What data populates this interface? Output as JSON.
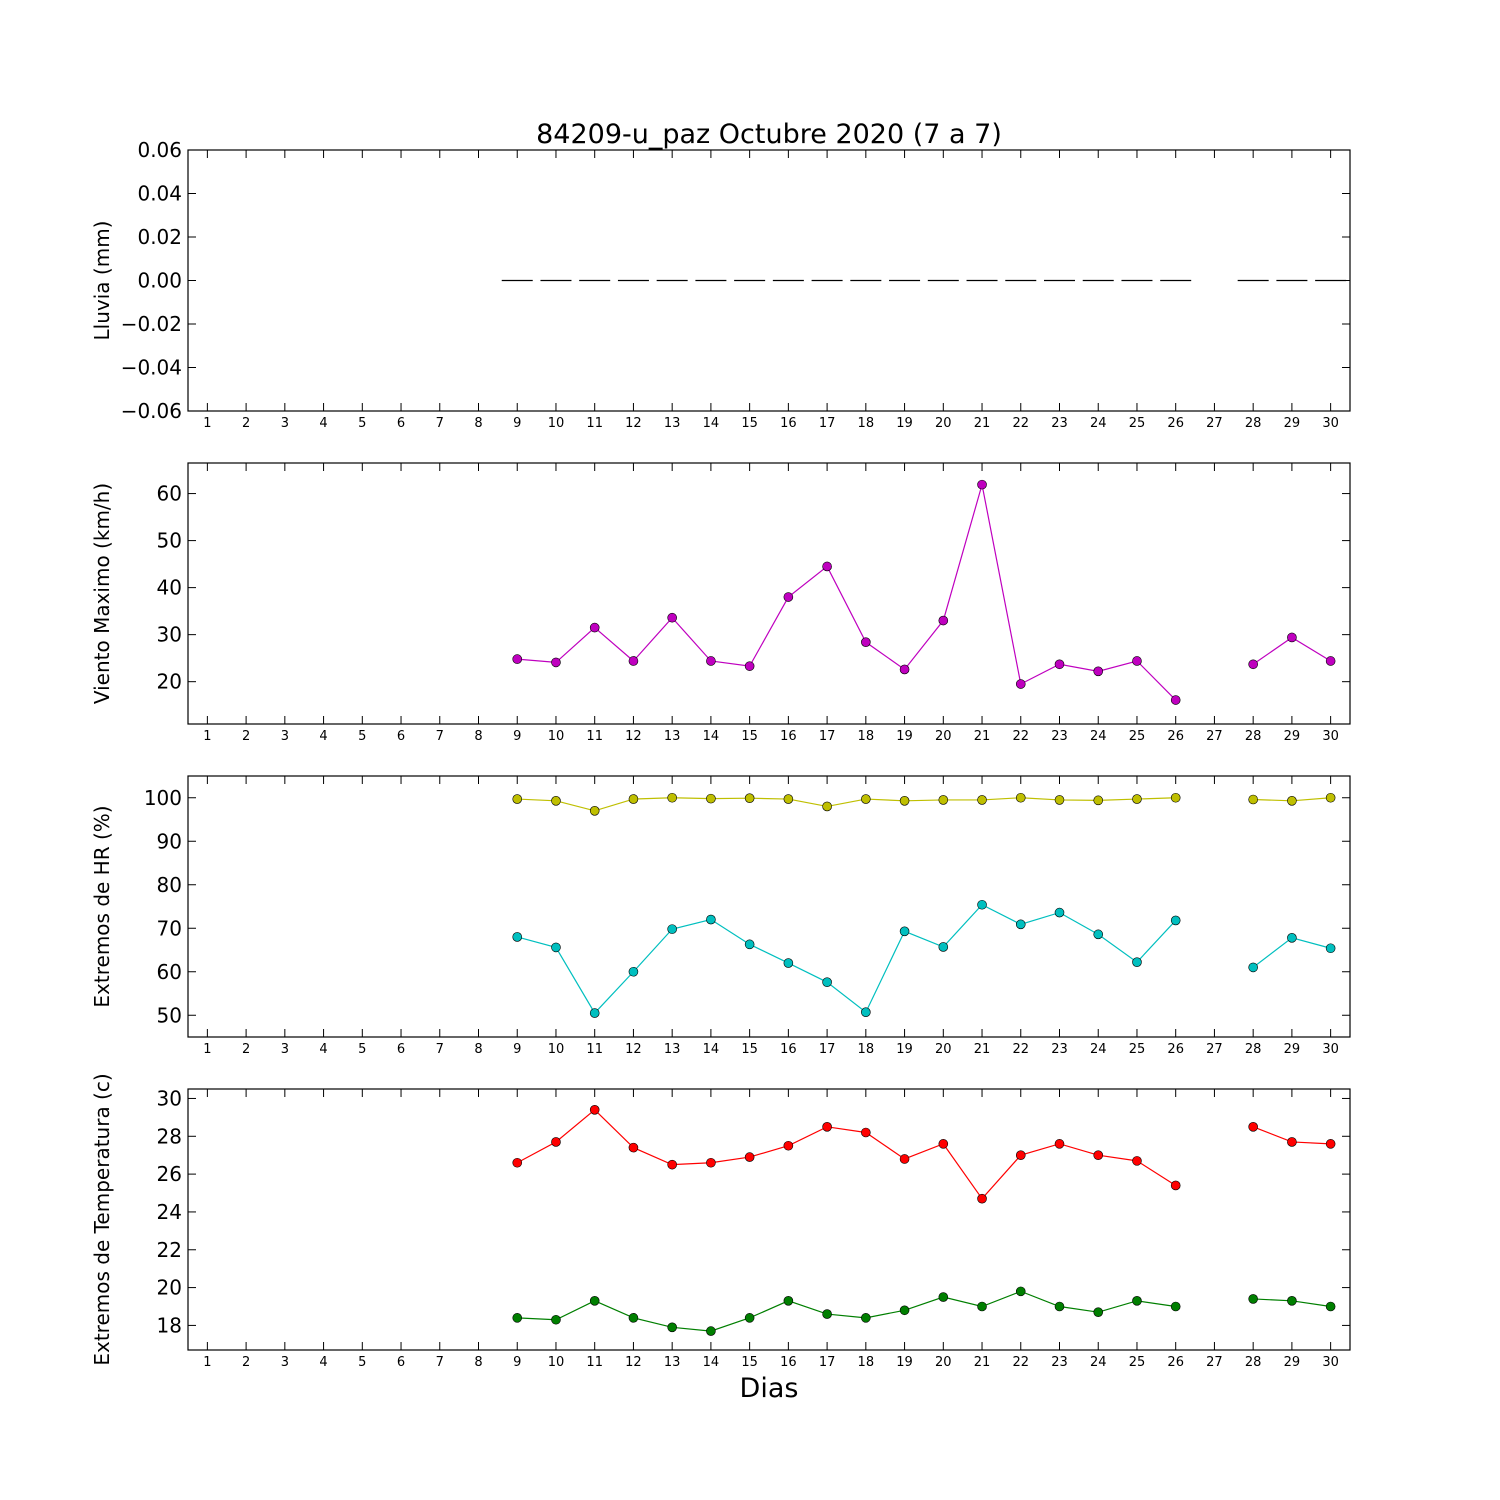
{
  "figure": {
    "title": "84209-u_paz Octubre 2020  (7 a 7)",
    "xlabel": "Dias"
  },
  "chart_data": [
    {
      "type": "line",
      "ylabel": "Lluvia (mm)",
      "x": [
        1,
        2,
        3,
        4,
        5,
        6,
        7,
        8,
        9,
        10,
        11,
        12,
        13,
        14,
        15,
        16,
        17,
        18,
        19,
        20,
        21,
        22,
        23,
        24,
        25,
        26,
        27,
        28,
        29,
        30
      ],
      "xlim": [
        0.5,
        30.5
      ],
      "ylim": [
        -0.06,
        0.06
      ],
      "yticks": [
        -0.06,
        -0.04,
        -0.02,
        0.0,
        0.02,
        0.04,
        0.06
      ],
      "ytick_labels": [
        "−0.06",
        "−0.04",
        "−0.02",
        "0.00",
        "0.02",
        "0.04",
        "0.06"
      ],
      "series": [
        {
          "color": "#000000",
          "style": "bar-dash",
          "values": [
            null,
            null,
            null,
            null,
            null,
            null,
            null,
            null,
            0,
            0,
            0,
            0,
            0,
            0,
            0,
            0,
            0,
            0,
            0,
            0,
            0,
            0,
            0,
            0,
            0,
            0,
            null,
            0,
            0,
            0
          ]
        }
      ]
    },
    {
      "type": "line",
      "ylabel": "Viento Maximo (km/h)",
      "x": [
        1,
        2,
        3,
        4,
        5,
        6,
        7,
        8,
        9,
        10,
        11,
        12,
        13,
        14,
        15,
        16,
        17,
        18,
        19,
        20,
        21,
        22,
        23,
        24,
        25,
        26,
        27,
        28,
        29,
        30
      ],
      "xlim": [
        0.5,
        30.5
      ],
      "ylim": [
        11,
        66.5
      ],
      "yticks": [
        20,
        30,
        40,
        50,
        60
      ],
      "ytick_labels": [
        "20",
        "30",
        "40",
        "50",
        "60"
      ],
      "series": [
        {
          "color": "#bf00bf",
          "values": [
            null,
            null,
            null,
            null,
            null,
            null,
            null,
            null,
            24.8,
            24.1,
            31.5,
            24.4,
            33.6,
            24.4,
            23.3,
            38.0,
            44.5,
            28.4,
            22.6,
            33.0,
            61.9,
            19.5,
            23.7,
            22.2,
            24.4,
            16.1,
            null,
            23.7,
            29.4,
            24.4
          ]
        }
      ]
    },
    {
      "type": "line",
      "ylabel": "Extremos de HR (%)",
      "x": [
        1,
        2,
        3,
        4,
        5,
        6,
        7,
        8,
        9,
        10,
        11,
        12,
        13,
        14,
        15,
        16,
        17,
        18,
        19,
        20,
        21,
        22,
        23,
        24,
        25,
        26,
        27,
        28,
        29,
        30
      ],
      "xlim": [
        0.5,
        30.5
      ],
      "ylim": [
        45,
        105
      ],
      "yticks": [
        50,
        60,
        70,
        80,
        90,
        100
      ],
      "ytick_labels": [
        "50",
        "60",
        "70",
        "80",
        "90",
        "100"
      ],
      "series": [
        {
          "color": "#bfbf00",
          "values": [
            null,
            null,
            null,
            null,
            null,
            null,
            null,
            null,
            99.7,
            99.3,
            97.0,
            99.7,
            100.0,
            99.8,
            99.9,
            99.7,
            98.0,
            99.7,
            99.3,
            99.5,
            99.5,
            100.0,
            99.5,
            99.4,
            99.7,
            100.0,
            null,
            99.6,
            99.3,
            100.0
          ]
        },
        {
          "color": "#00bfbf",
          "values": [
            null,
            null,
            null,
            null,
            null,
            null,
            null,
            null,
            68.0,
            65.6,
            50.5,
            60.0,
            69.8,
            72.0,
            66.3,
            62.0,
            57.6,
            50.7,
            69.3,
            65.7,
            75.4,
            70.9,
            73.6,
            68.6,
            62.2,
            71.8,
            null,
            61.0,
            67.8,
            65.4
          ]
        }
      ]
    },
    {
      "type": "line",
      "ylabel": "Extremos de Temperatura (c)",
      "x": [
        1,
        2,
        3,
        4,
        5,
        6,
        7,
        8,
        9,
        10,
        11,
        12,
        13,
        14,
        15,
        16,
        17,
        18,
        19,
        20,
        21,
        22,
        23,
        24,
        25,
        26,
        27,
        28,
        29,
        30
      ],
      "xlim": [
        0.5,
        30.5
      ],
      "ylim": [
        16.7,
        30.5
      ],
      "yticks": [
        18,
        20,
        22,
        24,
        26,
        28,
        30
      ],
      "ytick_labels": [
        "18",
        "20",
        "22",
        "24",
        "26",
        "28",
        "30"
      ],
      "series": [
        {
          "color": "#ff0000",
          "values": [
            null,
            null,
            null,
            null,
            null,
            null,
            null,
            null,
            26.6,
            27.7,
            29.4,
            27.4,
            26.5,
            26.6,
            26.9,
            27.5,
            28.5,
            28.2,
            26.8,
            27.6,
            24.7,
            27.0,
            27.6,
            27.0,
            26.7,
            25.4,
            null,
            28.5,
            27.7,
            27.6
          ]
        },
        {
          "color": "#007f00",
          "values": [
            null,
            null,
            null,
            null,
            null,
            null,
            null,
            null,
            18.4,
            18.3,
            19.3,
            18.4,
            17.9,
            17.7,
            18.4,
            19.3,
            18.6,
            18.4,
            18.8,
            19.5,
            19.0,
            19.8,
            19.0,
            18.7,
            19.3,
            19.0,
            null,
            19.4,
            19.3,
            19.0
          ]
        }
      ]
    }
  ]
}
